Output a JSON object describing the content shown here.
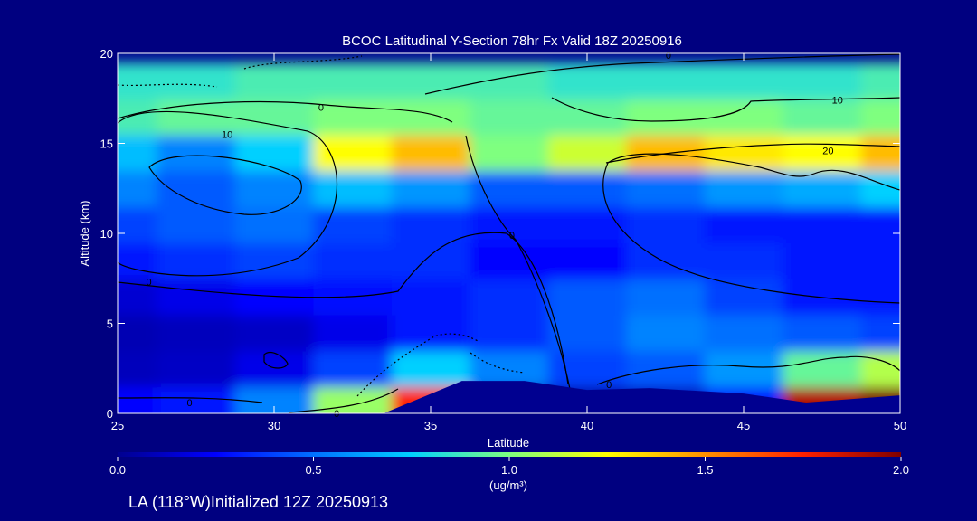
{
  "chart_data": {
    "type": "heatmap",
    "title": "BCOC Latitudinal Y-Section 78hr  Fx Valid 18Z 20250916",
    "xlabel": "Latitude",
    "ylabel": "Altitude (km)",
    "xlim": [
      25,
      50
    ],
    "ylim": [
      0,
      20
    ],
    "x_ticks": [
      25,
      30,
      35,
      40,
      45,
      50
    ],
    "y_ticks": [
      0,
      5,
      10,
      15,
      20
    ],
    "x_tick_labels": [
      "25",
      "30",
      "35",
      "40",
      "45",
      "50"
    ],
    "y_tick_labels": [
      "0",
      "5",
      "10",
      "15",
      "20"
    ],
    "colorbar": {
      "min": 0.0,
      "max": 2.0,
      "ticks": [
        0.0,
        0.5,
        1.0,
        1.5,
        2.0
      ],
      "tick_labels": [
        "0.0",
        "0.5",
        "1.0",
        "1.5",
        "2.0"
      ],
      "unit": "(ug/m³)",
      "colormap": [
        "#00008f",
        "#0000ff",
        "#0070ff",
        "#00d0ff",
        "#7fff7f",
        "#ffff00",
        "#ff9000",
        "#ff2000",
        "#800000"
      ]
    },
    "grid_lat": [
      25,
      27.5,
      30,
      32.5,
      35,
      37.5,
      40,
      42.5,
      45,
      47.5,
      50
    ],
    "grid_alt": [
      0.5,
      2.5,
      4.5,
      6.5,
      8.5,
      10.5,
      12.5,
      14.5,
      16.5,
      18.5
    ],
    "grid_values": [
      [
        0.25,
        0.3,
        0.55,
        1.05,
        1.75,
        0.05,
        0.05,
        0.1,
        0.3,
        1.9,
        2.0
      ],
      [
        0.1,
        0.12,
        0.2,
        0.4,
        0.75,
        0.55,
        0.4,
        0.45,
        0.6,
        0.95,
        1.1
      ],
      [
        0.08,
        0.1,
        0.12,
        0.2,
        0.3,
        0.35,
        0.45,
        0.55,
        0.5,
        0.45,
        0.4
      ],
      [
        0.15,
        0.2,
        0.25,
        0.28,
        0.3,
        0.35,
        0.45,
        0.5,
        0.4,
        0.3,
        0.3
      ],
      [
        0.3,
        0.35,
        0.4,
        0.35,
        0.35,
        0.25,
        0.25,
        0.35,
        0.35,
        0.3,
        0.3
      ],
      [
        0.4,
        0.45,
        0.5,
        0.4,
        0.35,
        0.3,
        0.3,
        0.35,
        0.3,
        0.3,
        0.3
      ],
      [
        0.55,
        0.45,
        0.55,
        0.7,
        0.6,
        0.45,
        0.45,
        0.5,
        0.6,
        0.65,
        0.75
      ],
      [
        0.7,
        0.55,
        0.75,
        1.25,
        1.4,
        1.0,
        1.15,
        1.4,
        1.3,
        1.25,
        1.4
      ],
      [
        0.9,
        0.95,
        0.95,
        1.0,
        1.0,
        0.95,
        0.95,
        1.0,
        1.0,
        0.95,
        1.0
      ],
      [
        0.85,
        0.85,
        0.9,
        0.9,
        0.9,
        0.9,
        0.85,
        0.85,
        0.85,
        0.85,
        0.9
      ]
    ],
    "terrain": [
      [
        25,
        0
      ],
      [
        33.5,
        0
      ],
      [
        36,
        1.8
      ],
      [
        38,
        1.8
      ],
      [
        40,
        1.3
      ],
      [
        42,
        1.4
      ],
      [
        45,
        1.1
      ],
      [
        47,
        0.6
      ],
      [
        50,
        1.0
      ]
    ],
    "contour_labels": [
      {
        "text": "0",
        "lat": 31.5,
        "alt": 17.0
      },
      {
        "text": "10",
        "lat": 28.5,
        "alt": 15.5
      },
      {
        "text": "0",
        "lat": 26.0,
        "alt": 7.3
      },
      {
        "text": "0",
        "lat": 27.3,
        "alt": 0.6
      },
      {
        "text": "0",
        "lat": 32.0,
        "alt": 0.0
      },
      {
        "text": "0",
        "lat": 42.6,
        "alt": 19.9
      },
      {
        "text": "10",
        "lat": 48.0,
        "alt": 17.4
      },
      {
        "text": "20",
        "lat": 47.7,
        "alt": 14.6
      },
      {
        "text": "0",
        "lat": 37.6,
        "alt": 9.9
      },
      {
        "text": "0",
        "lat": 40.7,
        "alt": 1.6
      }
    ]
  },
  "footer": {
    "caption": "LA (118°W)Initialized 12Z 20250913"
  }
}
